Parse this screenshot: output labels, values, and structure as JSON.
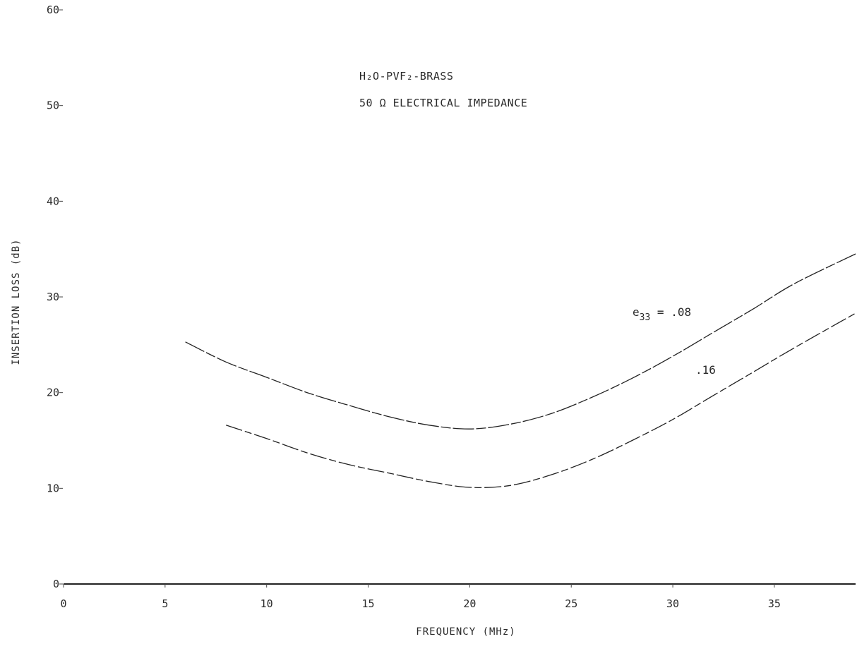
{
  "chart_data": {
    "type": "line",
    "title_lines": [
      "H₂O-PVF₂-BRASS",
      "50 Ω ELECTRICAL IMPEDANCE"
    ],
    "xlabel": "FREQUENCY (MHz)",
    "ylabel": "INSERTION LOSS (dB)",
    "xlim": [
      0,
      39
    ],
    "ylim": [
      0,
      60
    ],
    "x_ticks": [
      0,
      5,
      10,
      15,
      20,
      25,
      30,
      35
    ],
    "x_tick_labels": [
      "0",
      "5",
      "10",
      "15",
      "20",
      "25",
      "30",
      "35"
    ],
    "y_ticks": [
      0,
      10,
      20,
      30,
      40,
      50,
      60
    ],
    "y_tick_labels": [
      "0",
      "10",
      "20",
      "30",
      "40",
      "50",
      "60"
    ],
    "grid": false,
    "series": [
      {
        "name": "e33 = .08",
        "label_prefix": "e",
        "label_sub": "33",
        "label_suffix": " = .08",
        "x": [
          6,
          8,
          10,
          12,
          14,
          16,
          18,
          20,
          22,
          24,
          26,
          28,
          30,
          32,
          34,
          36,
          39
        ],
        "y": [
          25.3,
          23.2,
          21.6,
          20.0,
          18.7,
          17.5,
          16.6,
          16.2,
          16.7,
          17.8,
          19.5,
          21.5,
          23.8,
          26.3,
          28.8,
          31.4,
          34.5
        ]
      },
      {
        "name": ".16",
        "label_prefix": "",
        "label_sub": "",
        "label_suffix": ".16",
        "x": [
          8,
          10,
          12,
          14,
          16,
          18,
          20,
          22,
          24,
          26,
          28,
          30,
          32,
          34,
          36,
          39
        ],
        "y": [
          16.6,
          15.2,
          13.7,
          12.5,
          11.6,
          10.7,
          10.1,
          10.3,
          11.4,
          13.0,
          15.0,
          17.2,
          19.7,
          22.2,
          24.7,
          28.3
        ]
      }
    ]
  }
}
